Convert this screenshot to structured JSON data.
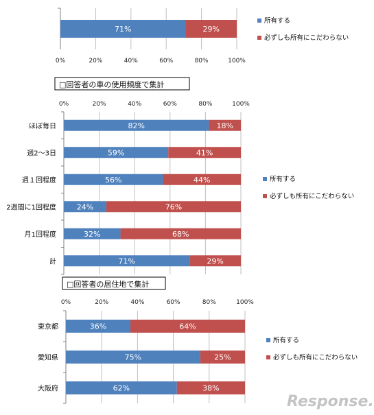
{
  "colors": {
    "own": "#4f81bd",
    "not_particular": "#c0504d",
    "grid": "#bfbfbf",
    "axis": "#7f7f7f"
  },
  "legend": {
    "own": "所有する",
    "not_particular": "必ずしも所有にこだわらない"
  },
  "logo_text": "Response.",
  "chart_data": [
    {
      "type": "bar",
      "orientation": "horizontal",
      "stacked": "percent",
      "title": "",
      "categories": [
        ""
      ],
      "series": [
        {
          "name": "所有する",
          "values": [
            71
          ]
        },
        {
          "name": "必ずしも所有にこだわらない",
          "values": [
            29
          ]
        }
      ],
      "data_labels": [
        [
          "71%"
        ],
        [
          "29%"
        ]
      ],
      "xlim": [
        0,
        100
      ],
      "xticks": [
        "0%",
        "20%",
        "40%",
        "60%",
        "80%",
        "100%"
      ],
      "legend_position": "right"
    },
    {
      "type": "bar",
      "orientation": "horizontal",
      "stacked": "percent",
      "title": "□回答者の車の使用頻度で集計",
      "categories": [
        "ほぼ毎日",
        "週2～3日",
        "週１回程度",
        "2週間に1回程度",
        "月1回程度",
        "計"
      ],
      "series": [
        {
          "name": "所有する",
          "values": [
            82,
            59,
            56,
            24,
            32,
            71
          ]
        },
        {
          "name": "必ずしも所有にこだわらない",
          "values": [
            18,
            41,
            44,
            76,
            68,
            29
          ]
        }
      ],
      "data_labels": [
        [
          "82%",
          "59%",
          "56%",
          "24%",
          "32%",
          "71%"
        ],
        [
          "18%",
          "41%",
          "44%",
          "76%",
          "68%",
          "29%"
        ]
      ],
      "xlim": [
        0,
        100
      ],
      "xticks": [
        "0%",
        "20%",
        "40%",
        "60%",
        "80%",
        "100%"
      ],
      "legend_position": "right"
    },
    {
      "type": "bar",
      "orientation": "horizontal",
      "stacked": "percent",
      "title": "□回答者の居住地で集計",
      "categories": [
        "東京都",
        "愛知県",
        "大阪府"
      ],
      "series": [
        {
          "name": "所有する",
          "values": [
            36,
            75,
            62
          ]
        },
        {
          "name": "必ずしも所有にこだわらない",
          "values": [
            64,
            25,
            38
          ]
        }
      ],
      "data_labels": [
        [
          "36%",
          "75%",
          "62%"
        ],
        [
          "64%",
          "25%",
          "38%"
        ]
      ],
      "xlim": [
        0,
        100
      ],
      "xticks": [
        "0%",
        "20%",
        "40%",
        "60%",
        "80%",
        "100%"
      ],
      "legend_position": "right"
    }
  ]
}
